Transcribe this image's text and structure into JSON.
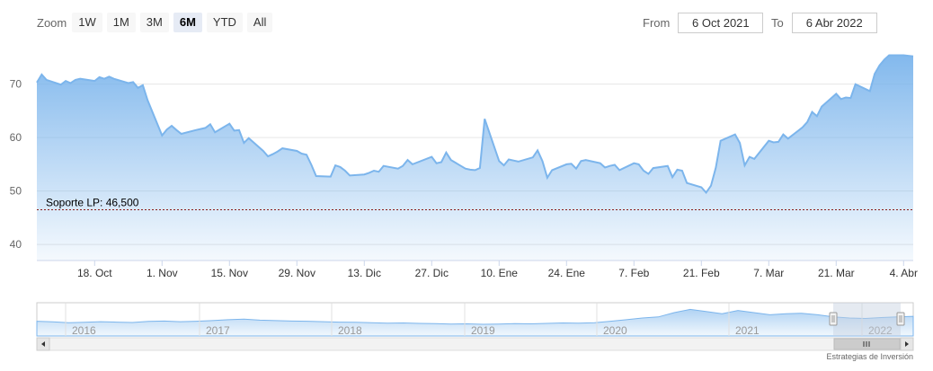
{
  "zoom": {
    "label": "Zoom",
    "buttons": [
      {
        "label": "1W",
        "active": false
      },
      {
        "label": "1M",
        "active": false
      },
      {
        "label": "3M",
        "active": false
      },
      {
        "label": "6M",
        "active": true
      },
      {
        "label": "YTD",
        "active": false
      },
      {
        "label": "All",
        "active": false
      }
    ]
  },
  "range": {
    "from_label": "From",
    "from_value": "6 Oct 2021",
    "to_label": "To",
    "to_value": "6 Abr 2022"
  },
  "watermark": "Estrategias de Inversión",
  "colors": {
    "line": "#7cb5ec",
    "area_top": "#7cb5ec",
    "support": "#8b1a1a",
    "navigator_mask": "#c6d0e0"
  },
  "chart_data": {
    "type": "area",
    "xlabel": "",
    "ylabel": "",
    "x_range": [
      "2021-10-06",
      "2022-04-06"
    ],
    "ylim": [
      37,
      77
    ],
    "y_ticks": [
      40,
      50,
      60,
      70
    ],
    "x_ticks": [
      {
        "date": "2021-10-18",
        "label": "18. Oct"
      },
      {
        "date": "2021-11-01",
        "label": "1. Nov"
      },
      {
        "date": "2021-11-15",
        "label": "15. Nov"
      },
      {
        "date": "2021-11-29",
        "label": "29. Nov"
      },
      {
        "date": "2021-12-13",
        "label": "13. Dic"
      },
      {
        "date": "2021-12-27",
        "label": "27. Dic"
      },
      {
        "date": "2022-01-10",
        "label": "10. Ene"
      },
      {
        "date": "2022-01-24",
        "label": "24. Ene"
      },
      {
        "date": "2022-02-07",
        "label": "7. Feb"
      },
      {
        "date": "2022-02-21",
        "label": "21. Feb"
      },
      {
        "date": "2022-03-07",
        "label": "7. Mar"
      },
      {
        "date": "2022-03-21",
        "label": "21. Mar"
      },
      {
        "date": "2022-04-04",
        "label": "4. Abr"
      }
    ],
    "grid": true,
    "plot_lines": [
      {
        "label": "Soporte LP: 46,500",
        "value": 46.5
      }
    ],
    "series": [
      {
        "points": [
          [
            "2021-10-06",
            70.3
          ],
          [
            "2021-10-07",
            71.8
          ],
          [
            "2021-10-08",
            70.8
          ],
          [
            "2021-10-11",
            69.9
          ],
          [
            "2021-10-12",
            70.6
          ],
          [
            "2021-10-13",
            70.2
          ],
          [
            "2021-10-14",
            70.8
          ],
          [
            "2021-10-15",
            71.0
          ],
          [
            "2021-10-18",
            70.6
          ],
          [
            "2021-10-19",
            71.3
          ],
          [
            "2021-10-20",
            71.0
          ],
          [
            "2021-10-21",
            71.4
          ],
          [
            "2021-10-22",
            71.0
          ],
          [
            "2021-10-25",
            70.2
          ],
          [
            "2021-10-26",
            70.4
          ],
          [
            "2021-10-27",
            69.3
          ],
          [
            "2021-10-28",
            69.8
          ],
          [
            "2021-10-29",
            67.0
          ],
          [
            "2021-11-01",
            60.4
          ],
          [
            "2021-11-02",
            61.5
          ],
          [
            "2021-11-03",
            62.2
          ],
          [
            "2021-11-04",
            61.4
          ],
          [
            "2021-11-05",
            60.7
          ],
          [
            "2021-11-08",
            61.4
          ],
          [
            "2021-11-09",
            61.6
          ],
          [
            "2021-11-10",
            61.8
          ],
          [
            "2021-11-11",
            62.5
          ],
          [
            "2021-11-12",
            61.0
          ],
          [
            "2021-11-15",
            62.6
          ],
          [
            "2021-11-16",
            61.3
          ],
          [
            "2021-11-17",
            61.4
          ],
          [
            "2021-11-18",
            59.0
          ],
          [
            "2021-11-19",
            59.9
          ],
          [
            "2021-11-22",
            57.5
          ],
          [
            "2021-11-23",
            56.5
          ],
          [
            "2021-11-24",
            56.9
          ],
          [
            "2021-11-25",
            57.4
          ],
          [
            "2021-11-26",
            58.0
          ],
          [
            "2021-11-29",
            57.5
          ],
          [
            "2021-11-30",
            57.0
          ],
          [
            "2021-12-01",
            56.8
          ],
          [
            "2021-12-02",
            54.9
          ],
          [
            "2021-12-03",
            52.8
          ],
          [
            "2021-12-06",
            52.7
          ],
          [
            "2021-12-07",
            54.8
          ],
          [
            "2021-12-08",
            54.5
          ],
          [
            "2021-12-09",
            53.8
          ],
          [
            "2021-12-10",
            52.9
          ],
          [
            "2021-12-13",
            53.1
          ],
          [
            "2021-12-14",
            53.4
          ],
          [
            "2021-12-15",
            53.8
          ],
          [
            "2021-12-16",
            53.6
          ],
          [
            "2021-12-17",
            54.7
          ],
          [
            "2021-12-20",
            54.2
          ],
          [
            "2021-12-21",
            54.7
          ],
          [
            "2021-12-22",
            55.8
          ],
          [
            "2021-12-23",
            55.0
          ],
          [
            "2021-12-27",
            56.4
          ],
          [
            "2021-12-28",
            55.2
          ],
          [
            "2021-12-29",
            55.4
          ],
          [
            "2021-12-30",
            57.2
          ],
          [
            "2021-12-31",
            55.8
          ],
          [
            "2022-01-03",
            54.2
          ],
          [
            "2022-01-04",
            54.0
          ],
          [
            "2022-01-05",
            53.9
          ],
          [
            "2022-01-06",
            54.3
          ],
          [
            "2022-01-07",
            63.5
          ],
          [
            "2022-01-10",
            55.6
          ],
          [
            "2022-01-11",
            54.8
          ],
          [
            "2022-01-12",
            55.9
          ],
          [
            "2022-01-13",
            55.7
          ],
          [
            "2022-01-14",
            55.5
          ],
          [
            "2022-01-17",
            56.3
          ],
          [
            "2022-01-18",
            57.6
          ],
          [
            "2022-01-19",
            55.6
          ],
          [
            "2022-01-20",
            52.5
          ],
          [
            "2022-01-21",
            53.9
          ],
          [
            "2022-01-24",
            55.0
          ],
          [
            "2022-01-25",
            55.1
          ],
          [
            "2022-01-26",
            54.2
          ],
          [
            "2022-01-27",
            55.6
          ],
          [
            "2022-01-28",
            55.8
          ],
          [
            "2022-01-31",
            55.2
          ],
          [
            "2022-02-01",
            54.4
          ],
          [
            "2022-02-02",
            54.7
          ],
          [
            "2022-02-03",
            54.9
          ],
          [
            "2022-02-04",
            53.9
          ],
          [
            "2022-02-07",
            55.2
          ],
          [
            "2022-02-08",
            55.0
          ],
          [
            "2022-02-09",
            53.8
          ],
          [
            "2022-02-10",
            53.2
          ],
          [
            "2022-02-11",
            54.3
          ],
          [
            "2022-02-14",
            54.7
          ],
          [
            "2022-02-15",
            52.6
          ],
          [
            "2022-02-16",
            54.0
          ],
          [
            "2022-02-17",
            53.8
          ],
          [
            "2022-02-18",
            51.5
          ],
          [
            "2022-02-21",
            50.7
          ],
          [
            "2022-02-22",
            49.7
          ],
          [
            "2022-02-23",
            51.0
          ],
          [
            "2022-02-24",
            54.4
          ],
          [
            "2022-02-25",
            59.4
          ],
          [
            "2022-02-28",
            60.6
          ],
          [
            "2022-03-01",
            59.0
          ],
          [
            "2022-03-02",
            54.8
          ],
          [
            "2022-03-03",
            56.4
          ],
          [
            "2022-03-04",
            56.0
          ],
          [
            "2022-03-07",
            59.4
          ],
          [
            "2022-03-08",
            59.1
          ],
          [
            "2022-03-09",
            59.2
          ],
          [
            "2022-03-10",
            60.6
          ],
          [
            "2022-03-11",
            59.8
          ],
          [
            "2022-03-14",
            61.9
          ],
          [
            "2022-03-15",
            62.9
          ],
          [
            "2022-03-16",
            64.8
          ],
          [
            "2022-03-17",
            64.0
          ],
          [
            "2022-03-18",
            65.8
          ],
          [
            "2022-03-21",
            68.2
          ],
          [
            "2022-03-22",
            67.2
          ],
          [
            "2022-03-23",
            67.5
          ],
          [
            "2022-03-24",
            67.4
          ],
          [
            "2022-03-25",
            70.0
          ],
          [
            "2022-03-28",
            68.7
          ],
          [
            "2022-03-29",
            71.9
          ],
          [
            "2022-03-30",
            73.5
          ],
          [
            "2022-03-31",
            74.6
          ],
          [
            "2022-04-01",
            75.4
          ],
          [
            "2022-04-04",
            75.4
          ],
          [
            "2022-04-05",
            75.3
          ],
          [
            "2022-04-06",
            75.2
          ]
        ]
      }
    ],
    "navigator": {
      "year_labels": [
        "2016",
        "2017",
        "2018",
        "2019",
        "2020",
        "2021",
        "2022"
      ],
      "values": [
        0.35,
        0.32,
        0.28,
        0.3,
        0.33,
        0.31,
        0.29,
        0.34,
        0.36,
        0.33,
        0.35,
        0.38,
        0.42,
        0.45,
        0.4,
        0.38,
        0.36,
        0.35,
        0.33,
        0.31,
        0.3,
        0.28,
        0.26,
        0.27,
        0.25,
        0.24,
        0.22,
        0.23,
        0.21,
        0.22,
        0.24,
        0.23,
        0.25,
        0.27,
        0.26,
        0.28,
        0.35,
        0.42,
        0.5,
        0.55,
        0.75,
        0.9,
        0.8,
        0.7,
        0.85,
        0.75,
        0.65,
        0.7,
        0.72,
        0.65,
        0.55,
        0.5,
        0.48,
        0.52,
        0.55,
        0.58
      ]
    }
  }
}
